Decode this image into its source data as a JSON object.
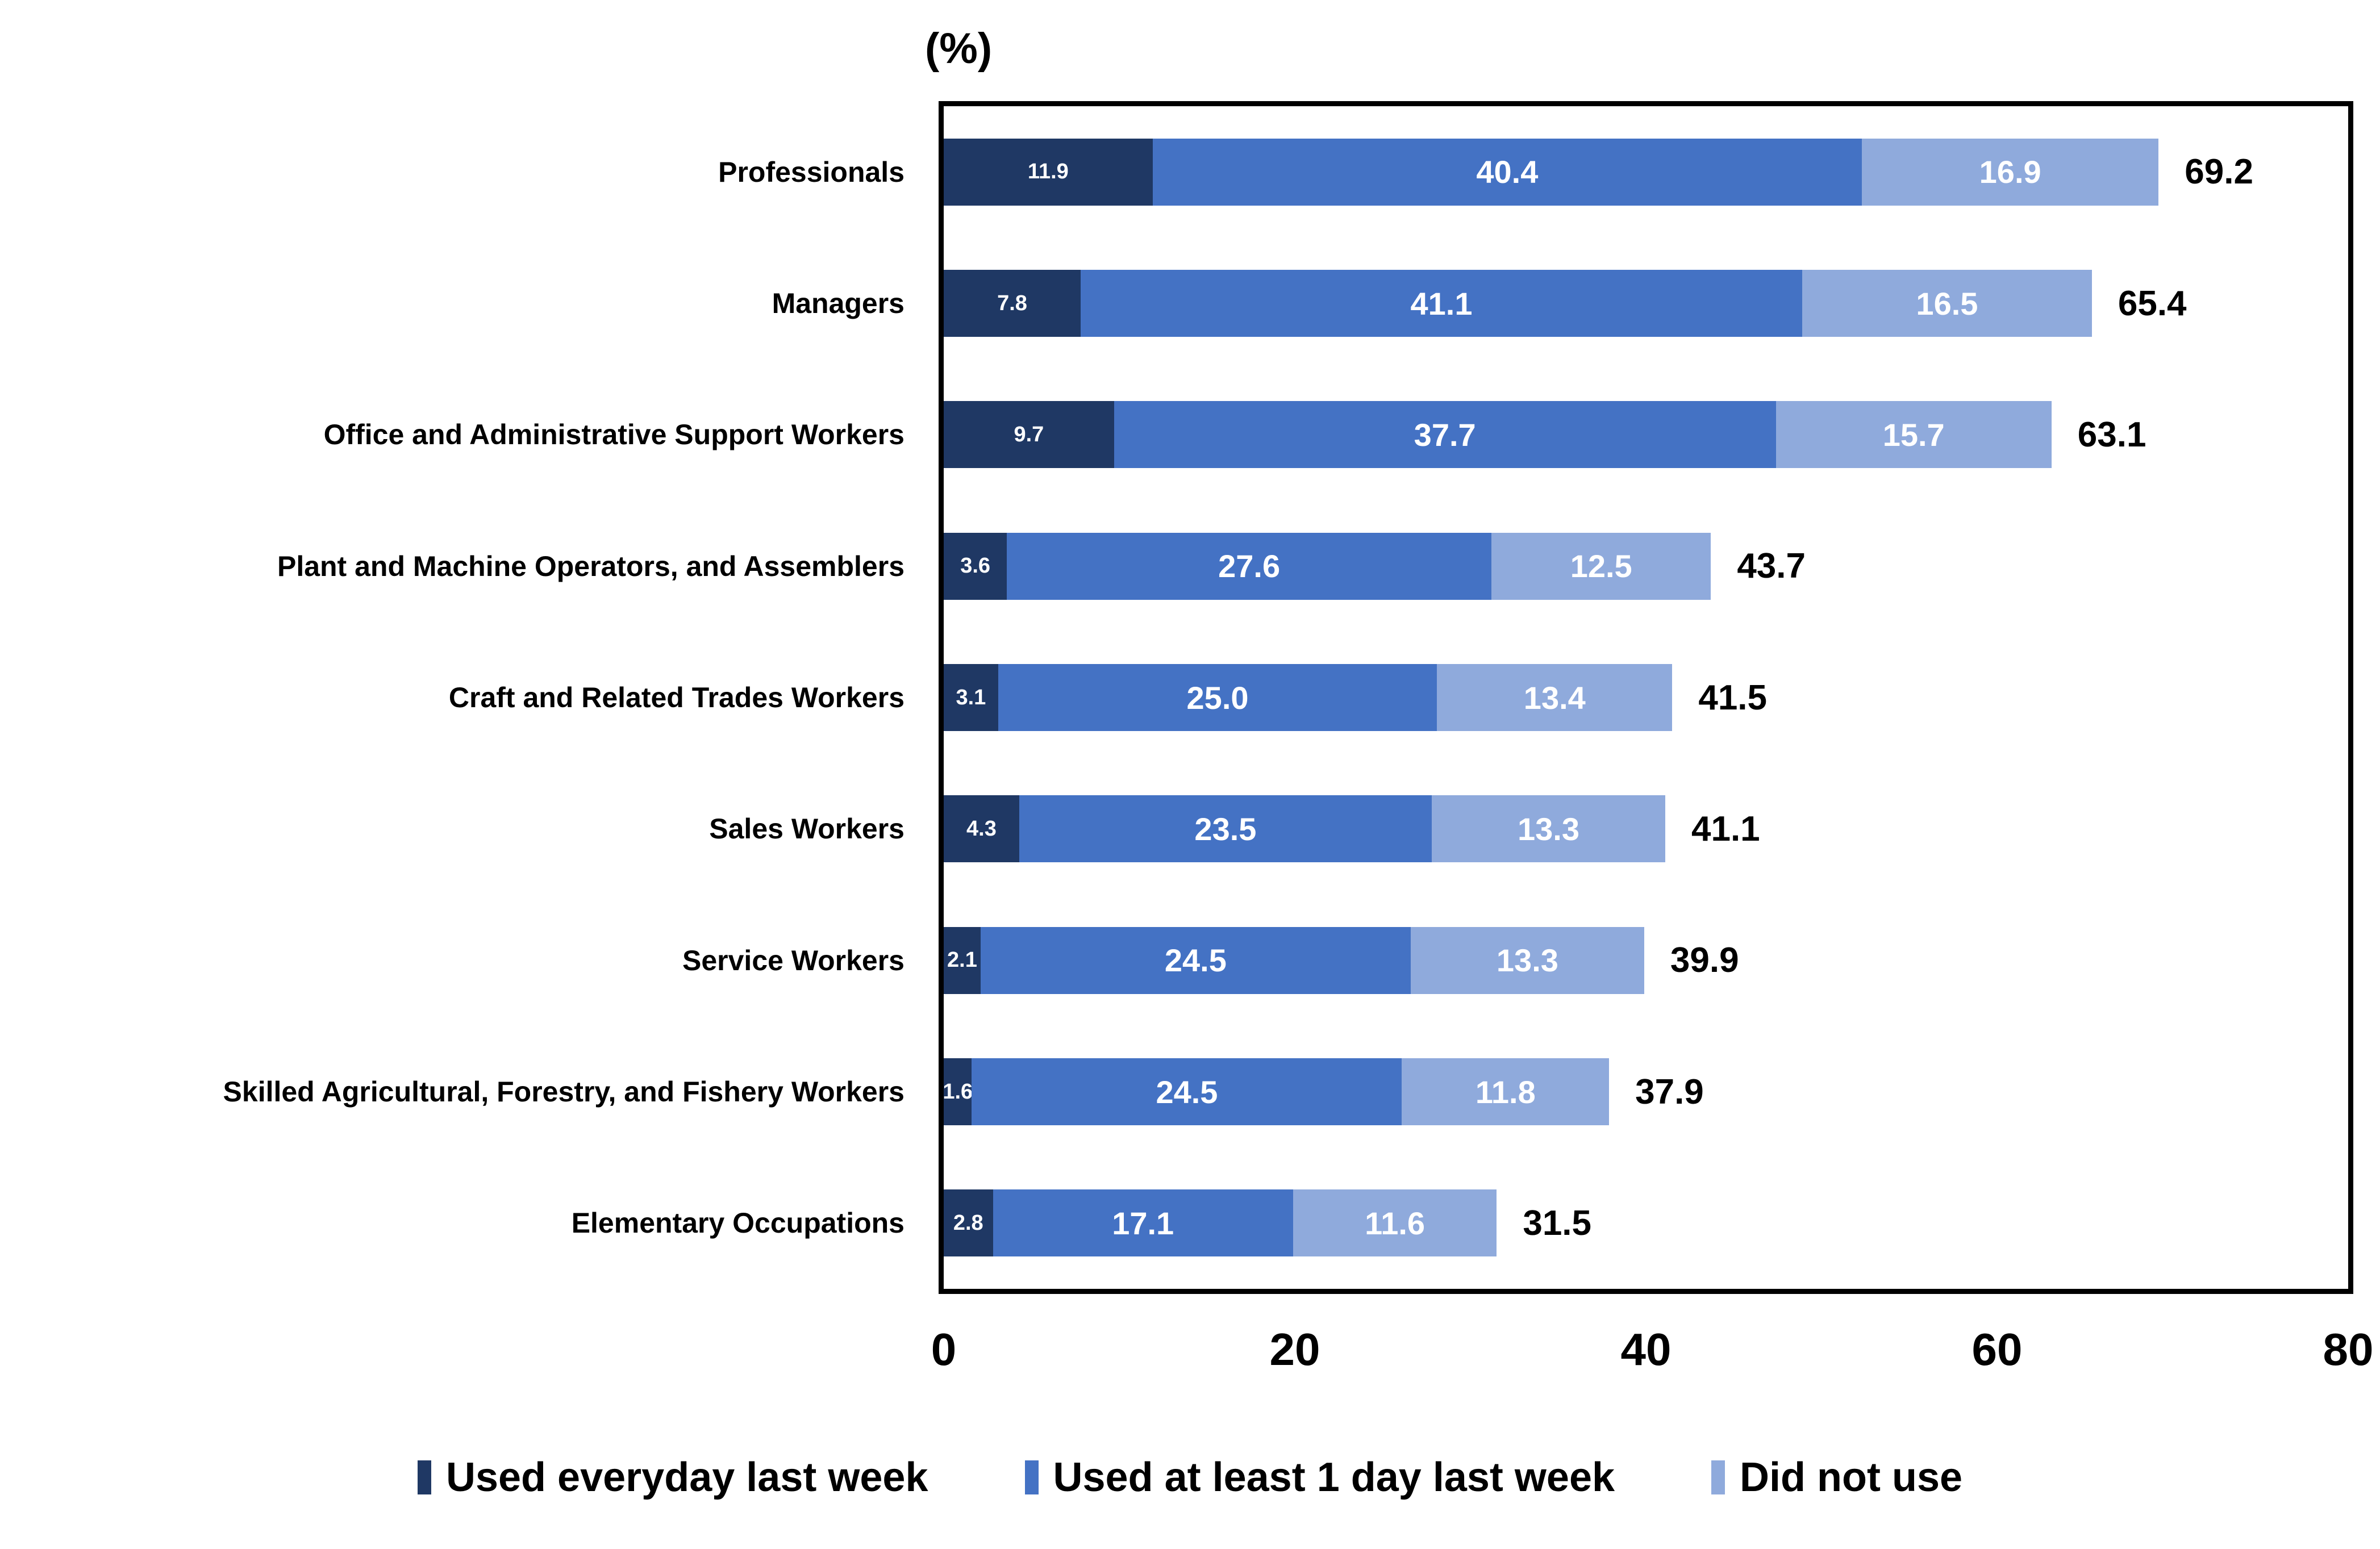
{
  "title": "(%)",
  "colors": {
    "series_dark": "#1F3864",
    "series_mid": "#4472C4",
    "series_light": "#8FAADC",
    "value_label_text": "#FFFFFF",
    "axis_and_text": "#000000",
    "plot_border": "#000000",
    "background": "#FFFFFF"
  },
  "chart_data": {
    "type": "bar",
    "orientation": "horizontal",
    "stacked": true,
    "title": "(%)",
    "xlabel": "",
    "ylabel": "",
    "xlim": [
      0,
      80
    ],
    "x_ticks": [
      0,
      20,
      40,
      60,
      80
    ],
    "x_tick_labels": [
      "0",
      "20",
      "40",
      "60",
      "80"
    ],
    "grid": false,
    "legend_position": "bottom",
    "categories": [
      "Professionals",
      "Managers",
      "Office and Administrative Support Workers",
      "Plant and Machine Operators, and Assemblers",
      "Craft and Related Trades Workers",
      "Sales Workers",
      "Service Workers",
      "Skilled Agricultural, Forestry, and Fishery Workers",
      "Elementary Occupations"
    ],
    "series": [
      {
        "name": "Used everyday last week",
        "color": "#1F3864",
        "values": [
          11.9,
          7.8,
          9.7,
          3.6,
          3.1,
          4.3,
          2.1,
          1.6,
          2.8
        ],
        "labels": [
          "11.9",
          "7.8",
          "9.7",
          "3.6",
          "3.1",
          "4.3",
          "2.1",
          "1.6",
          "2.8"
        ]
      },
      {
        "name": "Used at least 1 day last week",
        "color": "#4472C4",
        "values": [
          40.4,
          41.1,
          37.7,
          27.6,
          25.0,
          23.5,
          24.5,
          24.5,
          17.1
        ],
        "labels": [
          "40.4",
          "41.1",
          "37.7",
          "27.6",
          "25.0",
          "23.5",
          "24.5",
          "24.5",
          "17.1"
        ]
      },
      {
        "name": "Did not use",
        "color": "#8FAADC",
        "values": [
          16.9,
          16.5,
          15.7,
          12.5,
          13.4,
          13.3,
          13.3,
          11.8,
          11.6
        ],
        "labels": [
          "16.9",
          "16.5",
          "15.7",
          "12.5",
          "13.4",
          "13.3",
          "13.3",
          "11.8",
          "11.6"
        ]
      }
    ],
    "totals": [
      69.2,
      65.4,
      63.1,
      43.7,
      41.5,
      41.1,
      39.9,
      37.9,
      31.5
    ],
    "total_labels": [
      "69.2",
      "65.4",
      "63.1",
      "43.7",
      "41.5",
      "41.1",
      "39.9",
      "37.9",
      "31.5"
    ]
  }
}
